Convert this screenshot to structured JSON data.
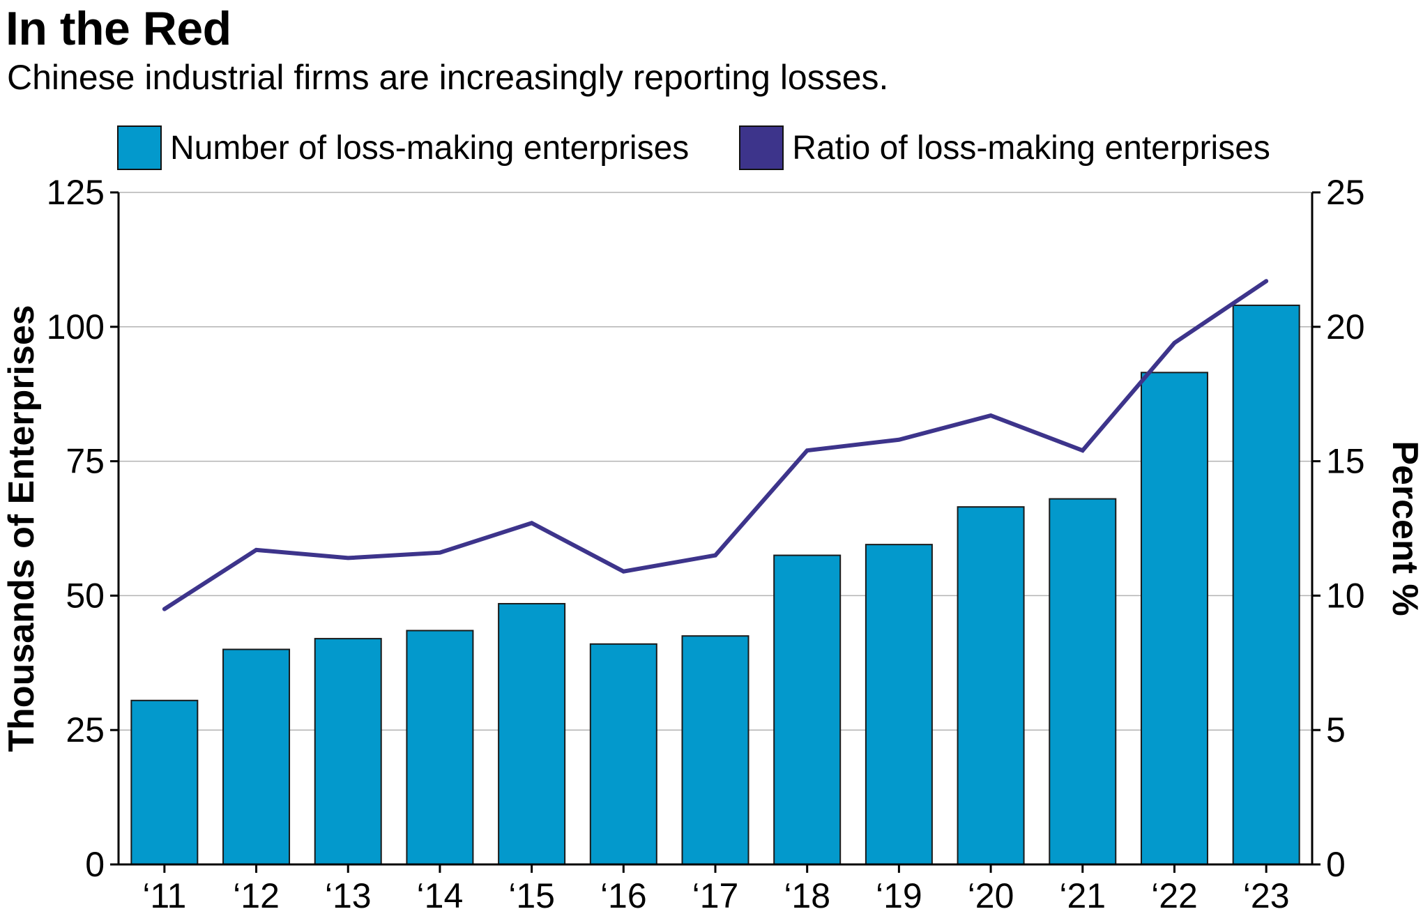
{
  "title": "In the Red",
  "subtitle": "Chinese industrial firms are increasingly reporting losses.",
  "colors": {
    "bar": "#0399cc",
    "line": "#3d348b",
    "grid": "#b3b3b3",
    "axis": "#000000"
  },
  "legend": {
    "bars": "Number of loss-making enterprises",
    "line": "Ratio of loss-making enterprises"
  },
  "chart_data": {
    "type": "bar",
    "title": "In the Red",
    "subtitle": "Chinese industrial firms are increasingly reporting losses.",
    "categories": [
      "‘11",
      "‘12",
      "‘13",
      "‘14",
      "‘15",
      "‘16",
      "‘17",
      "‘18",
      "‘19",
      "‘20",
      "‘21",
      "‘22",
      "‘23"
    ],
    "series": [
      {
        "name": "Number of loss-making enterprises",
        "type": "bar",
        "axis": "left",
        "values": [
          30.5,
          40,
          42,
          43.5,
          48.5,
          41,
          42.5,
          57.5,
          59.5,
          66.5,
          68,
          91.5,
          104
        ]
      },
      {
        "name": "Ratio of loss-making enterprises",
        "type": "line",
        "axis": "right",
        "values": [
          9.5,
          11.7,
          11.4,
          11.6,
          12.7,
          10.9,
          11.5,
          15.4,
          15.8,
          16.7,
          15.4,
          19.4,
          21.7
        ]
      }
    ],
    "ylabel": "Thousands of Enterprises",
    "ylim": [
      0,
      125
    ],
    "yticks": [
      "0",
      "25",
      "50",
      "75",
      "100",
      "125"
    ],
    "y2label": "Percent %",
    "y2lim": [
      0,
      25
    ],
    "y2ticks": [
      "0",
      "5",
      "10",
      "15",
      "20",
      "25"
    ],
    "grid": true,
    "legend_position": "top"
  }
}
